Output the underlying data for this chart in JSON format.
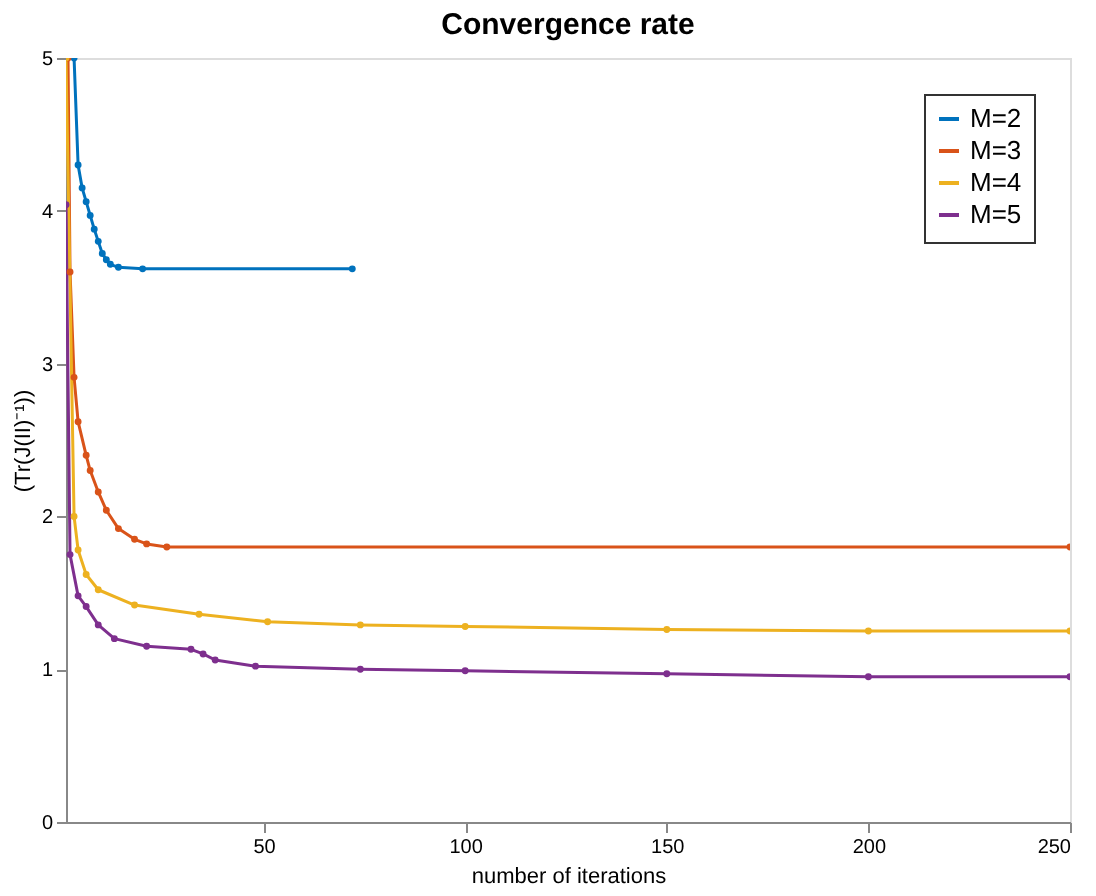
{
  "chart_data": {
    "type": "line",
    "title": "Convergence rate",
    "xlabel": "number of iterations",
    "ylabel": "(Tr(J(II)⁻¹))",
    "xlim": [
      1,
      250
    ],
    "ylim": [
      0,
      5
    ],
    "xticks": [
      50,
      100,
      150,
      200,
      250
    ],
    "yticks": [
      0,
      1,
      2,
      3,
      4,
      5
    ],
    "grid": false,
    "legend": "top right",
    "marker": "circle",
    "line_style": "solid",
    "series": [
      {
        "name": "M=2",
        "color": "#0072bd",
        "x": [
          3,
          4,
          5,
          6,
          7,
          8,
          9,
          10,
          11,
          12,
          14,
          20,
          72
        ],
        "values": [
          5.0,
          4.3,
          4.15,
          4.06,
          3.97,
          3.88,
          3.8,
          3.72,
          3.68,
          3.65,
          3.63,
          3.62,
          3.62
        ]
      },
      {
        "name": "M=3",
        "color": "#d95319",
        "x": [
          1.5,
          2,
          3,
          4,
          6,
          7,
          9,
          11,
          14,
          18,
          21,
          26,
          250
        ],
        "values": [
          5.0,
          3.6,
          2.91,
          2.62,
          2.4,
          2.3,
          2.16,
          2.04,
          1.92,
          1.85,
          1.82,
          1.8,
          1.8
        ]
      },
      {
        "name": "M=4",
        "color": "#edb120",
        "x": [
          1,
          3,
          4,
          6,
          9,
          18,
          34,
          51,
          74,
          100,
          150,
          200,
          250
        ],
        "values": [
          5.0,
          2.0,
          1.78,
          1.62,
          1.52,
          1.42,
          1.36,
          1.31,
          1.29,
          1.28,
          1.26,
          1.25,
          1.25
        ]
      },
      {
        "name": "M=5",
        "color": "#7e2f8e",
        "x": [
          1,
          2,
          4,
          6,
          9,
          13,
          21,
          32,
          35,
          38,
          48,
          74,
          100,
          150,
          200,
          250
        ],
        "values": [
          4.04,
          1.75,
          1.48,
          1.41,
          1.29,
          1.2,
          1.15,
          1.13,
          1.1,
          1.06,
          1.02,
          1.0,
          0.99,
          0.97,
          0.95,
          0.95
        ]
      }
    ]
  }
}
